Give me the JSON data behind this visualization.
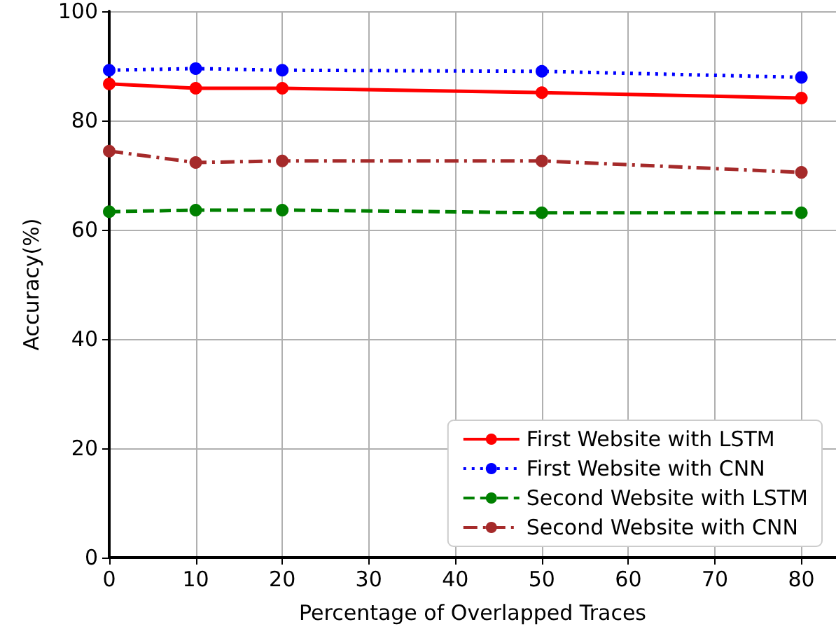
{
  "chart_data": {
    "type": "line",
    "xlabel": "Percentage of Overlapped Traces",
    "ylabel": "Accuracy(%)",
    "x": [
      0,
      10,
      20,
      50,
      80
    ],
    "series": [
      {
        "name": "First Website with LSTM",
        "color": "#ff0000",
        "line_style": "solid",
        "values": [
          86.7,
          85.9,
          85.9,
          85.1,
          84.1
        ]
      },
      {
        "name": "First Website with CNN",
        "color": "#0000ff",
        "line_style": "dotted",
        "values": [
          89.2,
          89.5,
          89.2,
          89.0,
          87.9
        ]
      },
      {
        "name": "Second Website with LSTM",
        "color": "#008000",
        "line_style": "dashed",
        "values": [
          63.3,
          63.6,
          63.6,
          63.1,
          63.1
        ]
      },
      {
        "name": "Second Website with CNN",
        "color": "#a52a2a",
        "line_style": "dashdot",
        "values": [
          74.4,
          72.3,
          72.6,
          72.6,
          70.5
        ]
      }
    ],
    "xlim": [
      0,
      84
    ],
    "xticks": [
      0,
      10,
      20,
      30,
      40,
      50,
      60,
      70,
      80
    ],
    "ylim": [
      0,
      100
    ],
    "yticks": [
      0,
      20,
      40,
      60,
      80,
      100
    ],
    "grid": true,
    "legend": "bottom right",
    "marker": "circle"
  }
}
